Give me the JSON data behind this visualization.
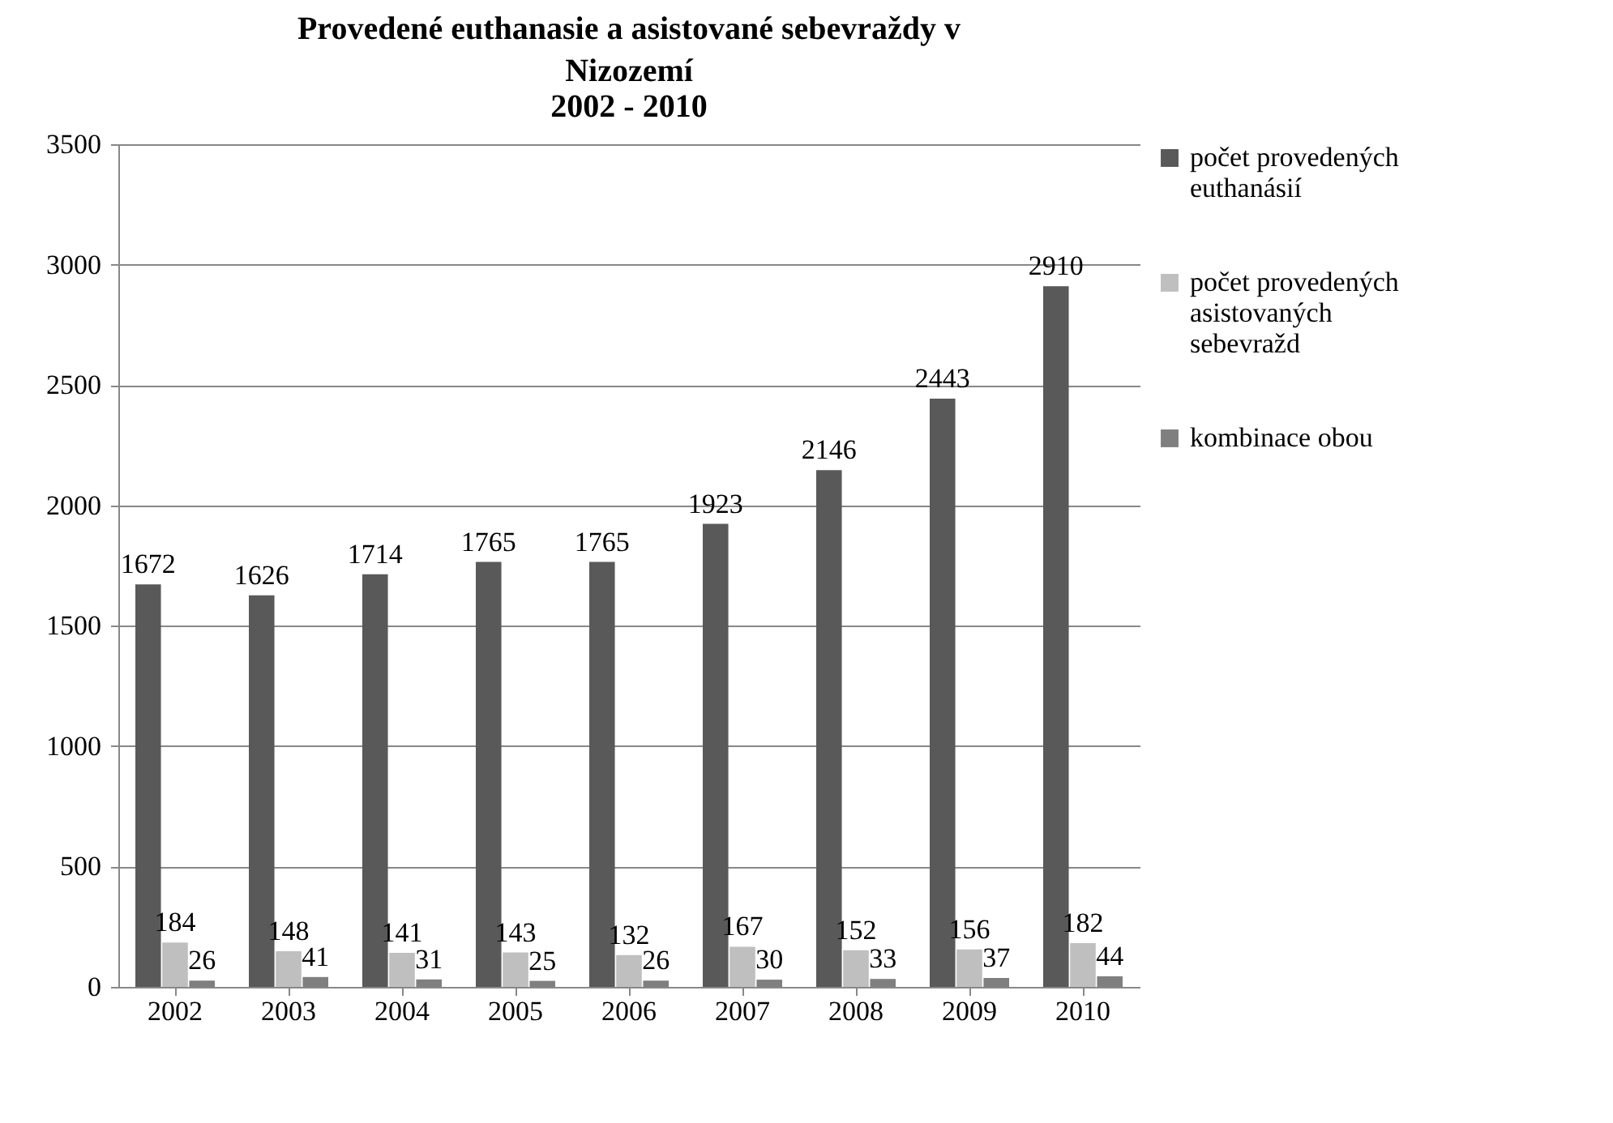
{
  "chart_data": {
    "type": "bar",
    "title": "Provedené euthanasie a asistované sebevraždy v Nizozemí",
    "subtitle": "2002 - 2010",
    "categories": [
      "2002",
      "2003",
      "2004",
      "2005",
      "2006",
      "2007",
      "2008",
      "2009",
      "2010"
    ],
    "series": [
      {
        "name": "počet provedených euthanásií",
        "color": "#595959",
        "values": [
          1672,
          1626,
          1714,
          1765,
          1765,
          1923,
          2146,
          2443,
          2910
        ]
      },
      {
        "name": "počet provedených asistovaných sebevražd",
        "color": "#bfbfbf",
        "values": [
          184,
          148,
          141,
          143,
          132,
          167,
          152,
          156,
          182
        ]
      },
      {
        "name": "kombinace obou",
        "color": "#7f7f7f",
        "values": [
          26,
          41,
          31,
          25,
          26,
          30,
          33,
          37,
          44
        ]
      }
    ],
    "ylim": [
      0,
      3500
    ],
    "yticks": [
      0,
      500,
      1000,
      1500,
      2000,
      2500,
      3000,
      3500
    ],
    "grid": "y",
    "legend": "right",
    "data_labels": true
  }
}
